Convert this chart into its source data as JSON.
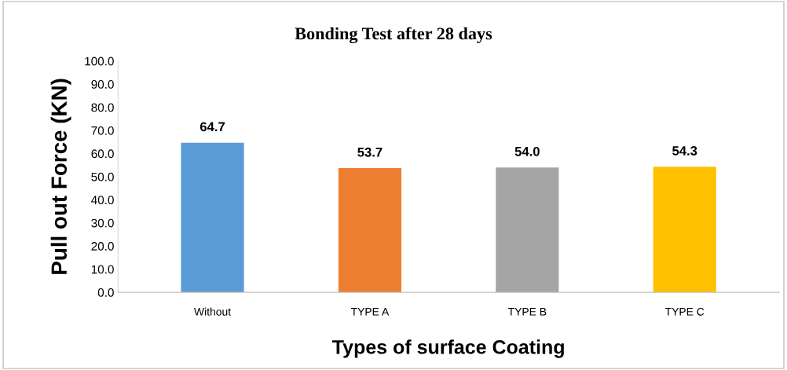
{
  "chart_data": {
    "type": "bar",
    "title": "Bonding Test after 28 days",
    "xlabel": "Types of surface Coating",
    "ylabel": "Pull out Force (KN)",
    "categories": [
      "Without",
      "TYPE A",
      "TYPE B",
      "TYPE C"
    ],
    "values": [
      64.7,
      53.7,
      54.0,
      54.3
    ],
    "colors": [
      "#5b9bd5",
      "#ed7d31",
      "#a5a5a5",
      "#ffc000"
    ],
    "value_labels": [
      "64.7",
      "53.7",
      "54.0",
      "54.3"
    ],
    "ylim": [
      0,
      100
    ],
    "yticks": [
      {
        "value": 0,
        "label": "0.0"
      },
      {
        "value": 10,
        "label": "10.0"
      },
      {
        "value": 20,
        "label": "20.0"
      },
      {
        "value": 30,
        "label": "30.0"
      },
      {
        "value": 40,
        "label": "40.0"
      },
      {
        "value": 50,
        "label": "50.0"
      },
      {
        "value": 60,
        "label": "60.0"
      },
      {
        "value": 70,
        "label": "70.0"
      },
      {
        "value": 80,
        "label": "80.0"
      },
      {
        "value": 90,
        "label": "90.0"
      },
      {
        "value": 100,
        "label": "100.0"
      }
    ],
    "grid": false,
    "legend": false
  }
}
